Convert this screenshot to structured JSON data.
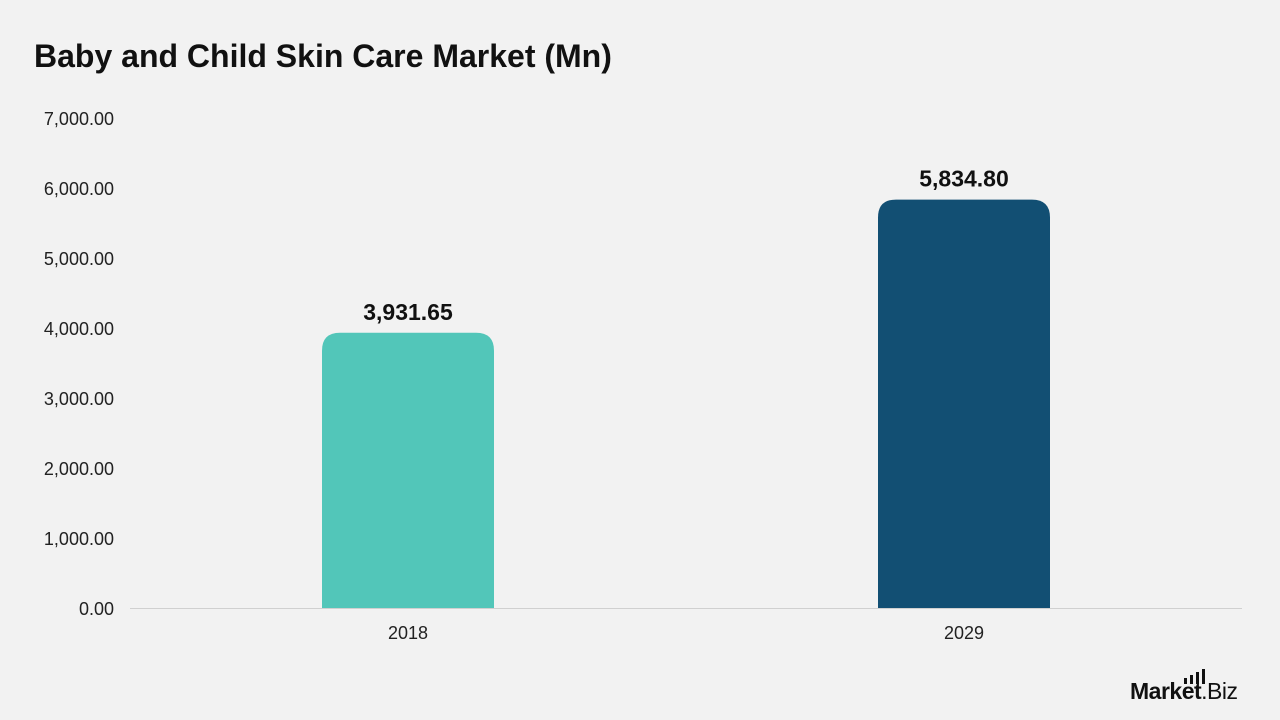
{
  "chart_data": {
    "type": "bar",
    "title": "Baby and Child Skin Care Market (Mn)",
    "xlabel": "",
    "ylabel": "",
    "categories": [
      "2018",
      "2029"
    ],
    "values": [
      3931.65,
      5834.8
    ],
    "value_labels": [
      "3,931.65",
      "5,834.80"
    ],
    "ylim": [
      0,
      7000
    ],
    "y_ticks": [
      0,
      1000,
      2000,
      3000,
      4000,
      5000,
      6000,
      7000
    ],
    "y_tick_labels": [
      "0.00",
      "1,000.00",
      "2,000.00",
      "3,000.00",
      "4,000.00",
      "5,000.00",
      "6,000.00",
      "7,000.00"
    ],
    "bar_colors": [
      "#52c6b9",
      "#124f73"
    ],
    "grid": false,
    "legend": "none"
  },
  "brand": {
    "name_main": "Market",
    "name_suffix": ".Biz",
    "logo_icon": "bar-chart-icon"
  }
}
